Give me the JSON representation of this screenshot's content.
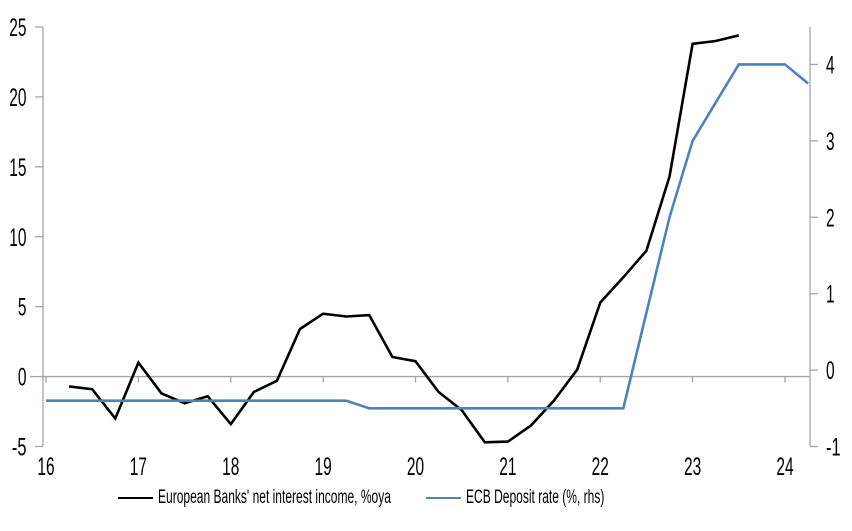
{
  "chart_data": {
    "type": "line",
    "title": "",
    "xlabel": "",
    "ylabel_left": "",
    "ylabel_right": "",
    "grid": false,
    "legend_position": "bottom",
    "x_ticks": [
      16,
      17,
      18,
      19,
      20,
      21,
      22,
      23,
      24
    ],
    "left_axis": {
      "ticks": [
        -5,
        0,
        5,
        10,
        15,
        20,
        25
      ],
      "range": [
        -5,
        25
      ]
    },
    "right_axis": {
      "ticks": [
        -1,
        0,
        1,
        2,
        3,
        4
      ],
      "range": [
        -1,
        4.49
      ]
    },
    "x_range": [
      16,
      24.27
    ],
    "axis_color": "#a6a6a6",
    "text_color": "#000000",
    "series": [
      {
        "name": "European Banks' net interest income, %oya",
        "axis": "left",
        "color": "#000000",
        "x": [
          16.25,
          16.5,
          16.75,
          17,
          17.25,
          17.5,
          17.75,
          18,
          18.25,
          18.5,
          18.75,
          19,
          19.25,
          19.5,
          19.75,
          20,
          20.25,
          20.5,
          20.75,
          21,
          21.25,
          21.5,
          21.75,
          22,
          22.25,
          22.5,
          22.75,
          23,
          23.25,
          23.5
        ],
        "values": [
          -0.7,
          -0.9,
          -3.0,
          1.0,
          -1.2,
          -1.9,
          -1.4,
          -3.4,
          -1.1,
          -0.3,
          3.4,
          4.5,
          4.3,
          4.4,
          1.4,
          1.1,
          -1.1,
          -2.4,
          -4.7,
          -4.65,
          -3.5,
          -1.7,
          0.5,
          5.3,
          7.1,
          9.0,
          14.3,
          23.8,
          24.0,
          24.4
        ]
      },
      {
        "name": "ECB Deposit rate (%, rhs)",
        "axis": "right",
        "color": "#4f81bd",
        "x": [
          16,
          16.25,
          16.5,
          16.75,
          17,
          17.25,
          17.5,
          17.75,
          18,
          18.25,
          18.5,
          18.75,
          19,
          19.25,
          19.5,
          19.75,
          20,
          20.25,
          20.5,
          20.75,
          21,
          21.25,
          21.5,
          21.75,
          22,
          22.25,
          22.5,
          22.75,
          23,
          23.25,
          23.5,
          23.75,
          24,
          24.25
        ],
        "values": [
          -0.4,
          -0.4,
          -0.4,
          -0.4,
          -0.4,
          -0.4,
          -0.4,
          -0.4,
          -0.4,
          -0.4,
          -0.4,
          -0.4,
          -0.4,
          -0.4,
          -0.5,
          -0.5,
          -0.5,
          -0.5,
          -0.5,
          -0.5,
          -0.5,
          -0.5,
          -0.5,
          -0.5,
          -0.5,
          -0.5,
          0.75,
          2.0,
          3.0,
          3.5,
          4.0,
          4.0,
          4.0,
          3.75
        ]
      }
    ]
  },
  "legend": {
    "items": [
      {
        "label": "European Banks' net interest income, %oya",
        "swatch": "black-line"
      },
      {
        "label": "ECB Deposit rate (%, rhs)",
        "swatch": "blue-line"
      }
    ]
  }
}
